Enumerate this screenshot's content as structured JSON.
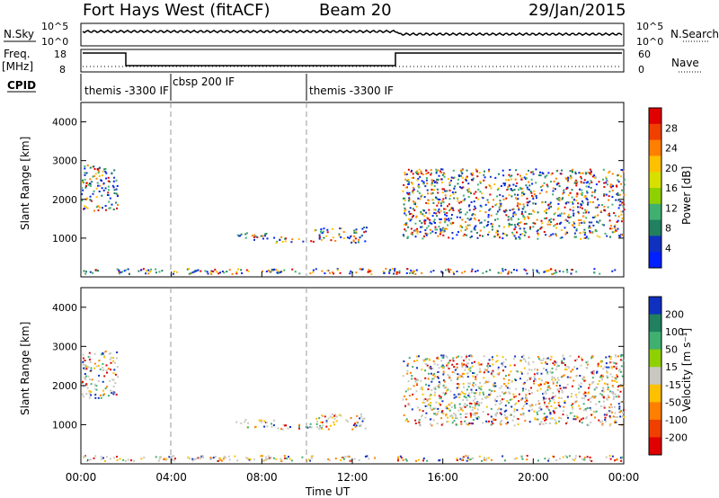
{
  "header": {
    "title": "Fort Hays West (fitACF)",
    "beam": "Beam 20",
    "date": "29/Jan/2015"
  },
  "sky_panel": {
    "left_label": "N.Sky",
    "right_label": "N.Search",
    "left_ticks": [
      "10^5",
      "10^0"
    ],
    "right_ticks": [
      "10^5",
      "10^0"
    ]
  },
  "freq_panel": {
    "left_label_1": "Freq.",
    "left_label_2": "[MHz]",
    "right_label": "Nave",
    "left_ticks": [
      "18",
      "8"
    ],
    "right_ticks": [
      "60",
      "0"
    ],
    "cpid_label": "CPID",
    "cpid_segments": [
      "themis -3300 IF",
      "cbsp 200 IF",
      "themis -3300 IF"
    ]
  },
  "chart_data": [
    {
      "type": "heatmap",
      "name": "Power",
      "xlabel": "",
      "ylabel": "Slant Range [km]",
      "x_hours_lim": [
        0,
        24
      ],
      "ylim": [
        0,
        4500
      ],
      "yticks": [
        "1000",
        "2000",
        "3000",
        "4000"
      ],
      "colorbar": {
        "label": "Power [dB]",
        "ticks": [
          "28",
          "24",
          "20",
          "16",
          "12",
          "8",
          "4"
        ],
        "colors": [
          "#e00000",
          "#f04000",
          "#ff7f00",
          "#ffc000",
          "#d8e000",
          "#8fd000",
          "#3fb070",
          "#208060",
          "#1030c0",
          "#0020ff"
        ]
      },
      "regions": [
        {
          "t0": 0.0,
          "t1": 1.6,
          "r0": 1700,
          "r1": 2900
        },
        {
          "t0": 6.8,
          "t1": 8.6,
          "r0": 950,
          "r1": 1150
        },
        {
          "t0": 8.6,
          "t1": 10.3,
          "r0": 900,
          "r1": 1050
        },
        {
          "t0": 10.3,
          "t1": 12.6,
          "r0": 900,
          "r1": 1300
        },
        {
          "t0": 14.2,
          "t1": 24.0,
          "r0": 1000,
          "r1": 2800
        }
      ]
    },
    {
      "type": "heatmap",
      "name": "Velocity",
      "xlabel": "Time UT",
      "ylabel": "Slant Range [km]",
      "x_hours_lim": [
        0,
        24
      ],
      "ylim": [
        0,
        4500
      ],
      "yticks": [
        "1000",
        "2000",
        "3000",
        "4000"
      ],
      "xticks": [
        "00:00",
        "04:00",
        "08:00",
        "12:00",
        "16:00",
        "20:00",
        "00:00"
      ],
      "colorbar": {
        "label": "Velocity [m s⁻¹]",
        "ticks": [
          "200",
          "100",
          "50",
          "15",
          "-15",
          "-50",
          "-100",
          "-200"
        ],
        "colors": [
          "#1030c0",
          "#208060",
          "#3fb070",
          "#8fd000",
          "#c8c8c0",
          "#ffc000",
          "#ff7f00",
          "#f04000",
          "#e00000"
        ]
      }
    }
  ]
}
